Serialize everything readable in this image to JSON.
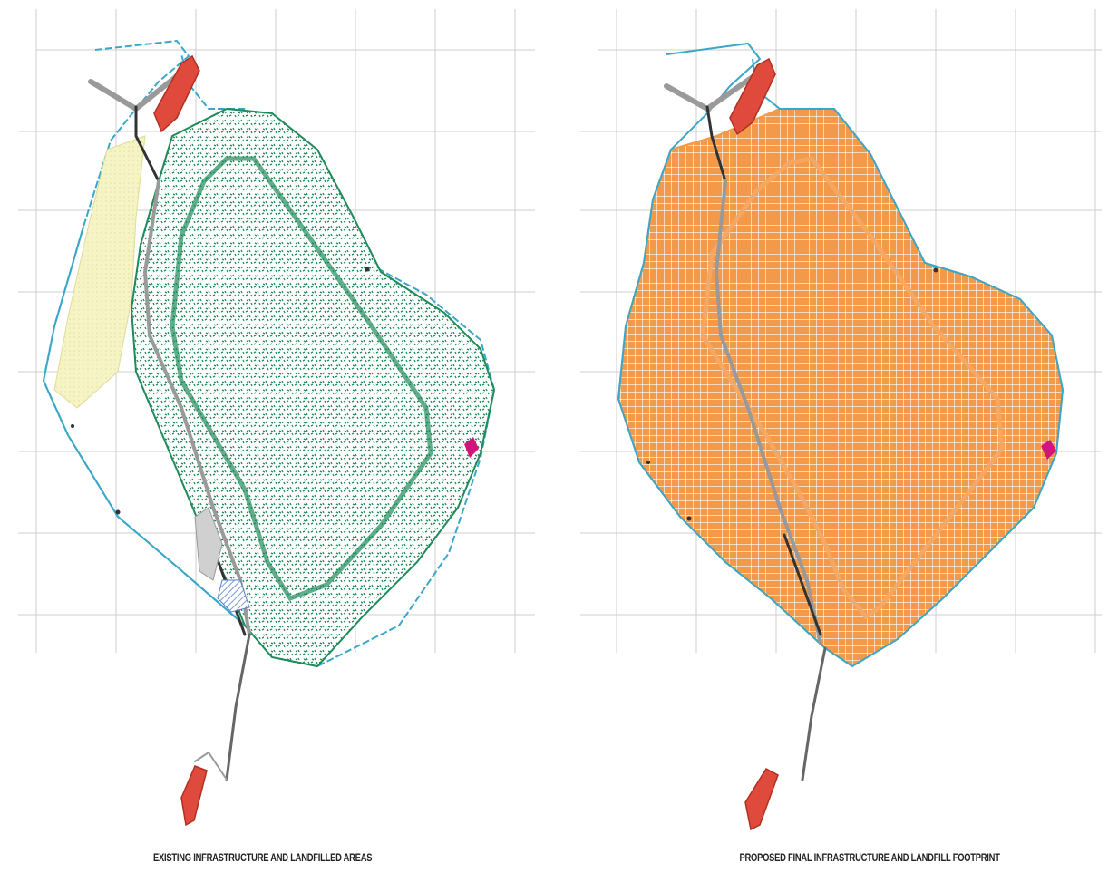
{
  "colors": {
    "grid": "#c9c9c9",
    "boundary": "#3aa7c9",
    "road": "#9a9a9a",
    "road_dark": "#333333",
    "pond": "#d8463a",
    "existing_landfill": "#1f8a5a",
    "existing_landfill_light": "#9ccfb3",
    "proposed_landfill": "#f09a4e",
    "proposed_landfill_line": "#f4a866",
    "yellow_area": "#f3f0b4",
    "blue_hatch": "#5b7fc8",
    "magenta": "#d0167a",
    "label_red": "#d23c3c"
  },
  "maps": [
    {
      "id": "existing",
      "caption": "EXISTING INFRASTRUCTURE AND LANDFILLED AREAS",
      "pattern": "stipple"
    },
    {
      "id": "proposed",
      "caption": "PROPOSED FINAL INFRASTRUCTURE AND LANDFILL FOOTPRINT",
      "pattern": "crosshatch"
    }
  ]
}
